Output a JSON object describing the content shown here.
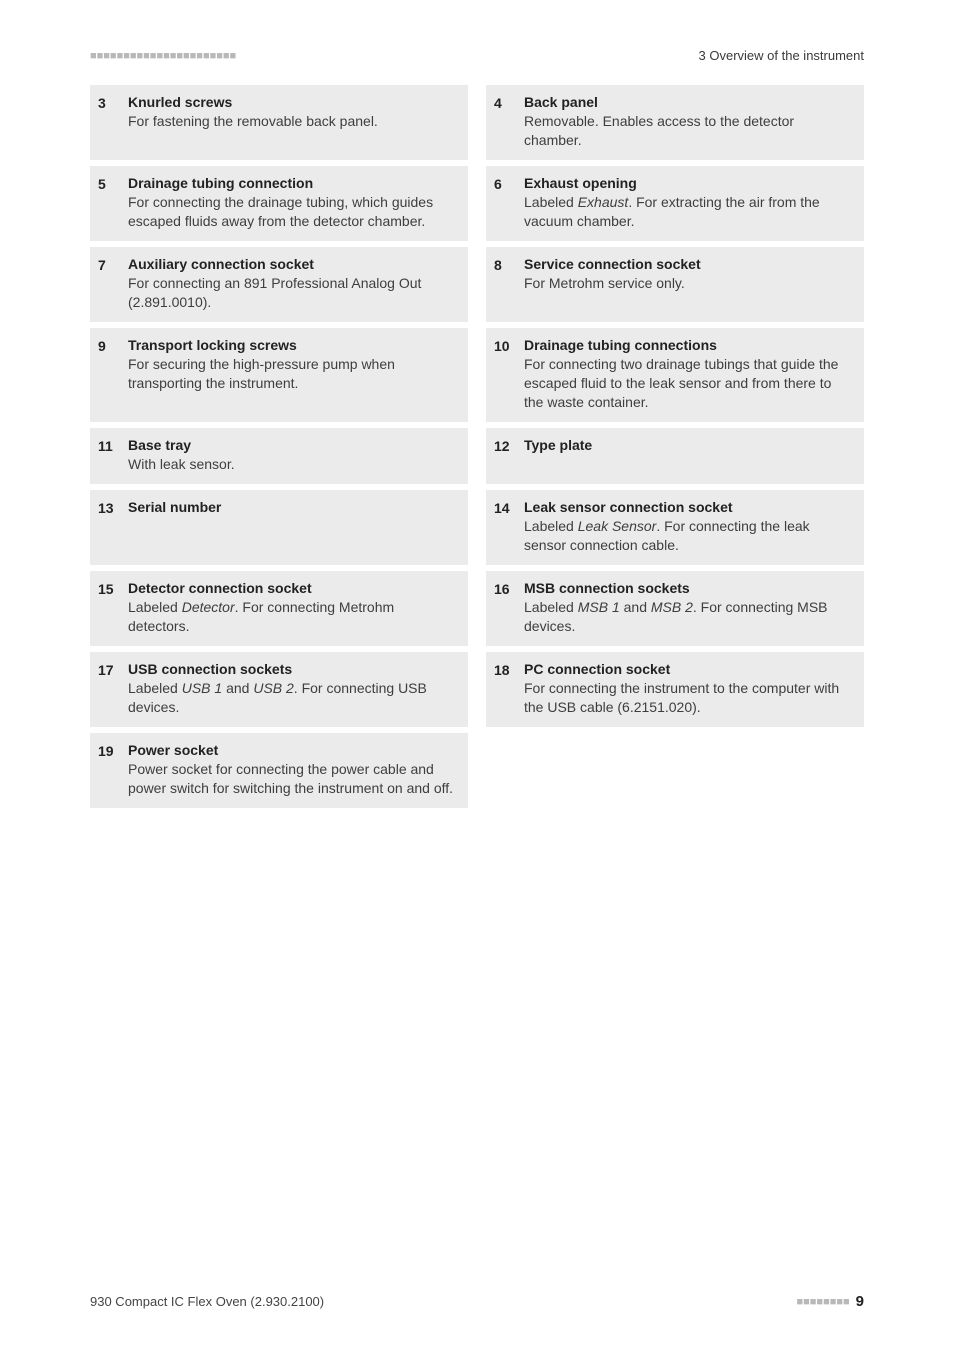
{
  "header": {
    "left_dashes": "■■■■■■■■■■■■■■■■■■■■■■",
    "right": "3 Overview of the instrument"
  },
  "rows": [
    {
      "left": {
        "num": "3",
        "title": "Knurled screws",
        "desc": "For fastening the removable back panel."
      },
      "right": {
        "num": "4",
        "title": "Back panel",
        "desc": "Removable. Enables access to the detector chamber."
      }
    },
    {
      "left": {
        "num": "5",
        "title": "Drainage tubing connection",
        "desc": "For connecting the drainage tubing, which guides escaped fluids away from the detector chamber."
      },
      "right": {
        "num": "6",
        "title": "Exhaust opening",
        "desc": "Labeled <em>Exhaust</em>. For extracting the air from the vacuum chamber."
      }
    },
    {
      "left": {
        "num": "7",
        "title": "Auxiliary connection socket",
        "desc": "For connecting an 891 Professional Analog Out (2.891.0010)."
      },
      "right": {
        "num": "8",
        "title": "Service connection socket",
        "desc": "For Metrohm service only."
      }
    },
    {
      "left": {
        "num": "9",
        "title": "Transport locking screws",
        "desc": "For securing the high-pressure pump when transporting the instrument."
      },
      "right": {
        "num": "10",
        "title": "Drainage tubing connections",
        "desc": "For connecting two drainage tubings that guide the escaped fluid to the leak sensor and from there to the waste container."
      }
    },
    {
      "left": {
        "num": "11",
        "title": "Base tray",
        "desc": "With leak sensor."
      },
      "right": {
        "num": "12",
        "title": "Type plate",
        "desc": ""
      }
    },
    {
      "left": {
        "num": "13",
        "title": "Serial number",
        "desc": ""
      },
      "right": {
        "num": "14",
        "title": "Leak sensor connection socket",
        "desc": "Labeled <em>Leak Sensor</em>. For connecting the leak sensor connection cable."
      }
    },
    {
      "left": {
        "num": "15",
        "title": "Detector connection socket",
        "desc": "Labeled <em>Detector</em>. For connecting Metrohm detectors."
      },
      "right": {
        "num": "16",
        "title": "MSB connection sockets",
        "desc": "Labeled <em>MSB 1</em> and <em>MSB 2</em>. For connecting MSB devices."
      }
    },
    {
      "left": {
        "num": "17",
        "title": "USB connection sockets",
        "desc": "Labeled <em>USB 1</em> and <em>USB 2</em>. For connecting USB devices."
      },
      "right": {
        "num": "18",
        "title": "PC connection socket",
        "desc": "For connecting the instrument to the computer with the USB cable (6.2151.020)."
      }
    },
    {
      "left": {
        "num": "19",
        "title": "Power socket",
        "desc": "Power socket for connecting the power cable and power switch for switching the instrument on and off."
      },
      "right": null
    }
  ],
  "footer": {
    "left": "930 Compact IC Flex Oven (2.930.2100)",
    "right_dashes": "■■■■■■■■",
    "page": "9"
  },
  "style": {
    "item_bg": "#ebebeb",
    "page_bg": "#ffffff",
    "text_color": "#3a3a3a",
    "title_weight": 700,
    "num_weight": 800,
    "font_size": 14
  }
}
